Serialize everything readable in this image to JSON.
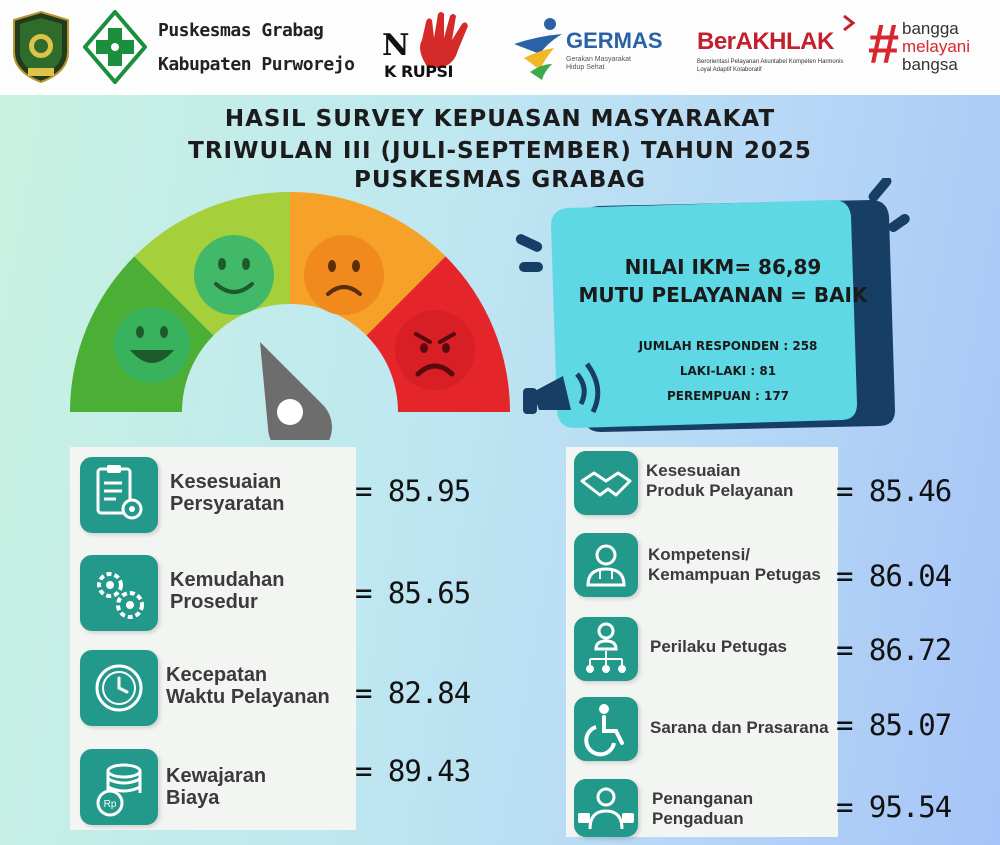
{
  "header": {
    "org_line1": "Puskesmas Grabag",
    "org_line2": "Kabupaten Purworejo",
    "no_korupsi_n": "N",
    "no_korupsi_word": "K RUPSI",
    "germas_title": "GERMAS",
    "germas_subtitle": "Gerakan Masyarakat Hidup Sehat",
    "berakhlak_title": "BerAKHLAK",
    "berakhlak_subtitle": "Berorientasi Pelayanan Akuntabel Kompeten Harmonis Loyal Adaptif Kolaboratif",
    "bangga_hash": "#",
    "bangga_line1": "bangga",
    "bangga_line2": "melayani",
    "bangga_line3": "bangsa"
  },
  "title": {
    "line1": "HASIL SURVEY KEPUASAN MASYARAKAT",
    "line2": "TRIWULAN III (JULI-SEPTEMBER) TAHUN 2025",
    "line3": "PUSKESMAS GRABAG"
  },
  "summary": {
    "ikm": "NILAI IKM= 86,89",
    "mutu": "MUTU PELAYANAN = BAIK",
    "responden": "JUMLAH RESPONDEN : 258",
    "laki": "LAKI-LAKI : 81",
    "perempuan": "PEREMPUAN : 177"
  },
  "left_items": [
    {
      "line1": "Kesesuaian",
      "line2": "Persyaratan",
      "value": "= 85.95",
      "icon": "clipboard-gear-icon"
    },
    {
      "line1": "Kemudahan",
      "line2": "Prosedur",
      "value": "= 85.65",
      "icon": "gears-icon"
    },
    {
      "line1": "Kecepatan",
      "line2": "Waktu Pelayanan",
      "value": "= 82.84",
      "icon": "clock-icon"
    },
    {
      "line1": "Kewajaran",
      "line2": "Biaya",
      "value": "= 89.43",
      "icon": "coins-icon"
    }
  ],
  "right_items": [
    {
      "line1": "Kesesuaian",
      "line2": "Produk Pelayanan",
      "value": "= 85.46",
      "icon": "handshake-icon"
    },
    {
      "line1": "Kompetensi/",
      "line2": "Kemampuan Petugas",
      "value": "= 86.04",
      "icon": "doctor-icon"
    },
    {
      "line1": "Perilaku Petugas",
      "line2": "",
      "value": "= 86.72",
      "icon": "staff-network-icon"
    },
    {
      "line1": "Sarana dan Prasarana",
      "line2": "",
      "value": "= 85.07",
      "icon": "wheelchair-icon"
    },
    {
      "line1": "Penanganan",
      "line2": "Pengaduan",
      "value": "= 95.54",
      "icon": "complaint-icon"
    }
  ],
  "colors": {
    "teal": "#22998a",
    "gauge_dark_green": "#4caf35",
    "gauge_light_green": "#a6cf3c",
    "gauge_orange": "#f6a229",
    "gauge_red": "#e4262b",
    "panel_cyan": "#5fd8e6",
    "panel_navy": "#173f66"
  }
}
